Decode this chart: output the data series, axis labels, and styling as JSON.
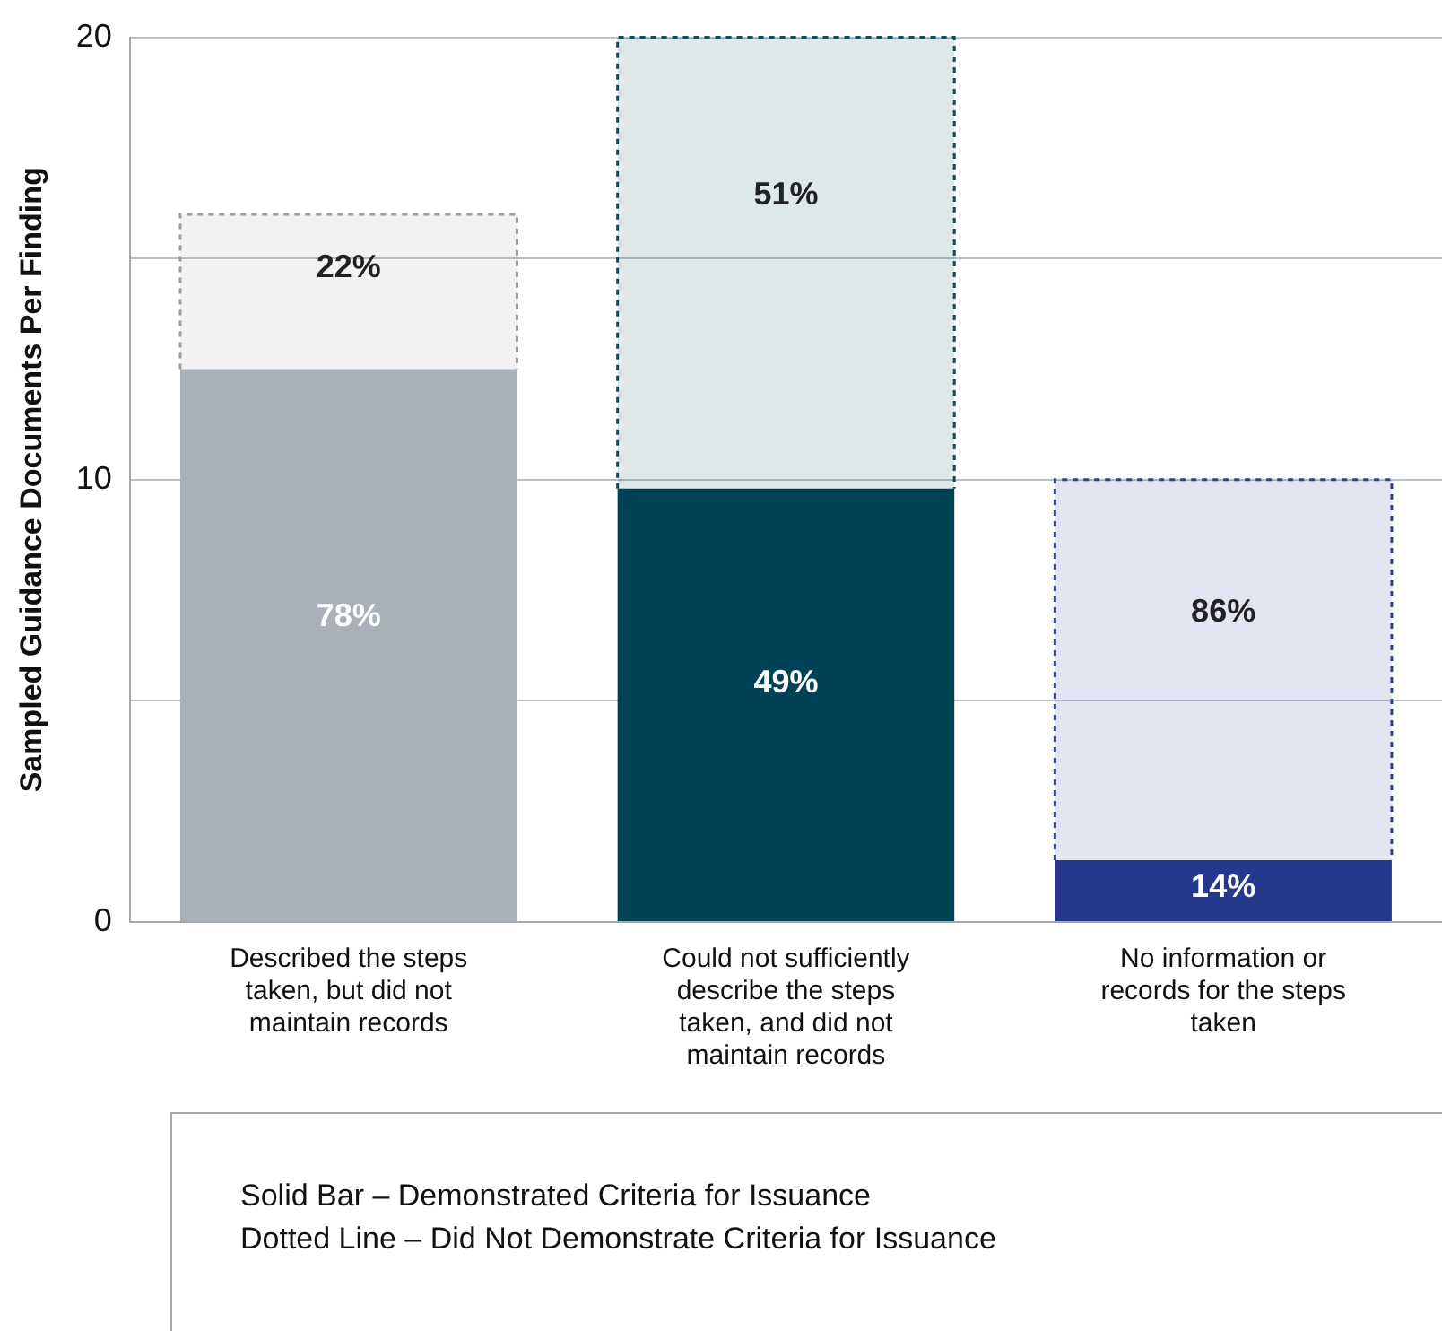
{
  "chart_data": {
    "type": "bar",
    "stacked": true,
    "ylabel": "Sampled Guidance Documents Per Finding",
    "categories": [
      "Described the steps taken, but did not maintain records",
      "Could not sufficiently describe the steps taken, and did not maintain records",
      "No information or records for the steps taken"
    ],
    "series": [
      {
        "colors": [
          "#a9b0ba",
          "#004256",
          "#25388c"
        ],
        "values": [
          12.5,
          9.8,
          1.4
        ]
      },
      {
        "colors": [
          "#9a9a9a",
          "#0b4f5c",
          "#2a3f9a"
        ],
        "line_style": "dotted",
        "values": [
          3.5,
          10.2,
          8.6
        ]
      }
    ],
    "ylim": [
      0,
      20
    ],
    "yticks": [
      0,
      {
        "value": 5,
        "label": null
      },
      10,
      {
        "value": 15,
        "label": null
      },
      20
    ],
    "grid": "y",
    "annotations": [
      "78%",
      "49%",
      "14%",
      "22%",
      "51%",
      "86%",
      "Solid Bar – Demonstrated Criteria for Issuance",
      "Dotted Line – Did Not Demonstrate Criteria for Issuance"
    ]
  }
}
